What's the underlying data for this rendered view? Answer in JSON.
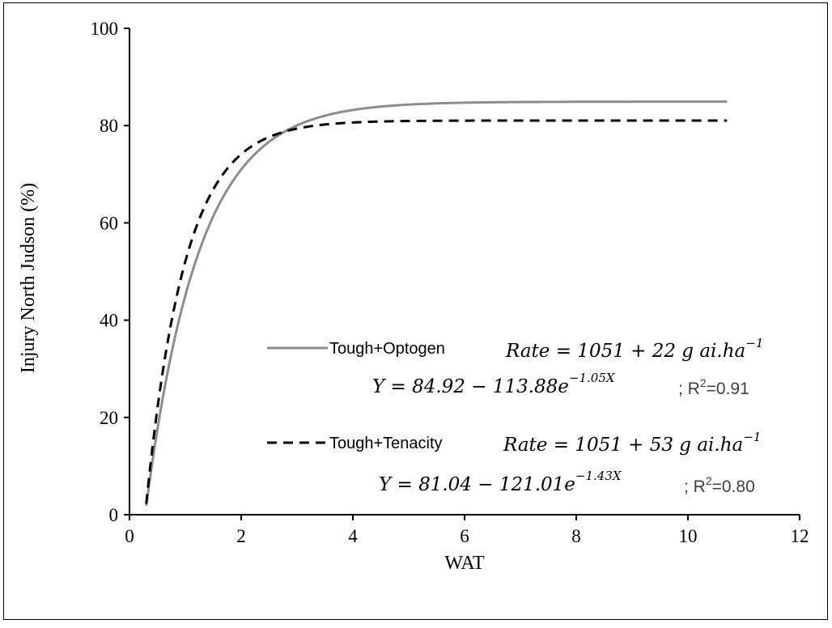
{
  "chart_data": {
    "type": "line",
    "xlabel": "WAT",
    "ylabel": "Injury North Judson (%)",
    "xlim": [
      0,
      12
    ],
    "ylim": [
      0,
      100
    ],
    "xticks": [
      "0",
      "2",
      "4",
      "6",
      "8",
      "10",
      "12"
    ],
    "yticks": [
      "0",
      "20",
      "40",
      "60",
      "80",
      "100"
    ],
    "grid": false,
    "legend_position": "center-right",
    "series": [
      {
        "name": "Tough+Optogen",
        "color": "#8c8c8c",
        "style": "solid",
        "model": {
          "a": 84.92,
          "b": 113.88,
          "k": 1.05
        },
        "x_range": [
          0.3,
          10.7
        ],
        "rate_text": "Rate = 1051 + 22 g ai.ha",
        "rate_exp": "−1",
        "equation_text": "Y = 84.92 − 113.88e",
        "equation_exp": "−1.05X",
        "r2_text": "; R",
        "r2_sup": "2",
        "r2_value": "=0.91"
      },
      {
        "name": "Tough+Tenacity",
        "color": "#000000",
        "style": "dashed",
        "model": {
          "a": 81.04,
          "b": 121.01,
          "k": 1.43
        },
        "x_range": [
          0.3,
          10.7
        ],
        "rate_text": "Rate = 1051 + 53 g ai.ha",
        "rate_exp": "−1",
        "equation_text": "Y = 81.04 − 121.01e",
        "equation_exp": "−1.43X",
        "r2_text": "; R",
        "r2_sup": "2",
        "r2_value": "=0.80"
      }
    ]
  }
}
